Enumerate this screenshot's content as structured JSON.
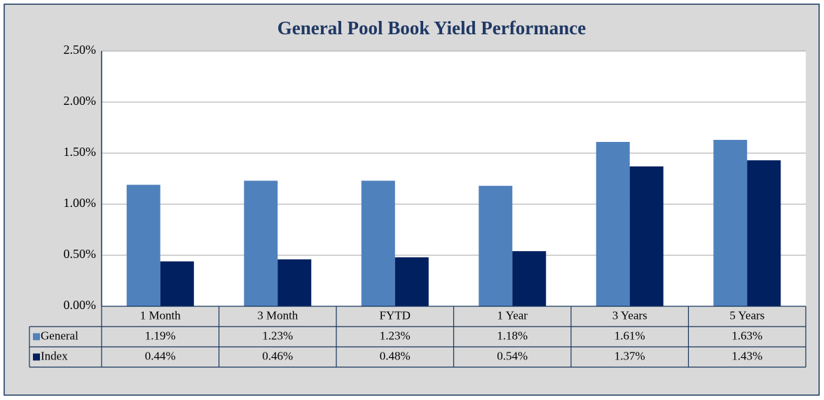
{
  "chart_data": {
    "type": "bar",
    "title": "General Pool Book Yield Performance",
    "categories": [
      "1 Month",
      "3 Month",
      "FYTD",
      "1 Year",
      "3 Years",
      "5 Years"
    ],
    "series": [
      {
        "name": "General",
        "color": "#4f81bd",
        "values": [
          1.19,
          1.23,
          1.23,
          1.18,
          1.61,
          1.63
        ],
        "value_labels": [
          "1.19%",
          "1.23%",
          "1.23%",
          "1.18%",
          "1.61%",
          "1.63%"
        ]
      },
      {
        "name": "Index",
        "color": "#002060",
        "values": [
          0.44,
          0.46,
          0.48,
          0.54,
          1.37,
          1.43
        ],
        "value_labels": [
          "0.44%",
          "0.46%",
          "0.48%",
          "0.54%",
          "1.37%",
          "1.43%"
        ]
      }
    ],
    "ylim": [
      0,
      2.5
    ],
    "yticks": [
      {
        "value": 0,
        "label": "0.00%"
      },
      {
        "value": 0.5,
        "label": "0.50%"
      },
      {
        "value": 1,
        "label": "1.00%"
      },
      {
        "value": 1.5,
        "label": "1.50%"
      },
      {
        "value": 2,
        "label": "2.00%"
      },
      {
        "value": 2.5,
        "label": "2.50%"
      }
    ],
    "grid": true
  }
}
